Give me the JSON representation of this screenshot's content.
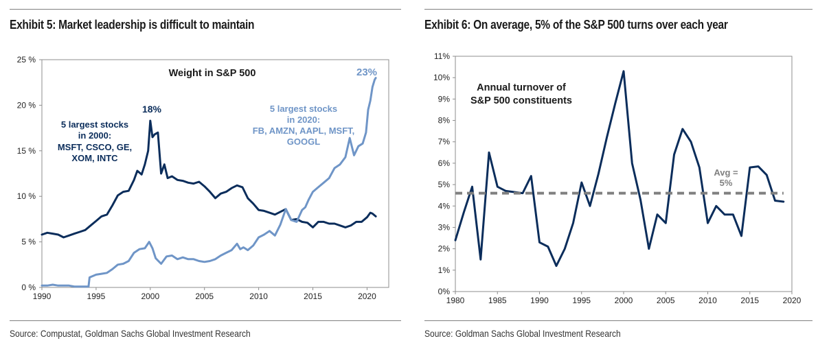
{
  "chart_data": [
    {
      "id": "exhibit5",
      "type": "line",
      "title": "Exhibit 5: Market leadership is difficult to maintain",
      "subtitle": "Weight in S&P 500",
      "xlabel": "",
      "ylabel": "",
      "xlim": [
        1990,
        2022
      ],
      "ylim": [
        0,
        25
      ],
      "x_ticks": [
        1990,
        1995,
        2000,
        2005,
        2010,
        2015,
        2020
      ],
      "x_tick_labels": [
        "1990",
        "1995",
        "2000",
        "2005",
        "2010",
        "2015",
        "2020"
      ],
      "y_ticks": [
        0,
        5,
        10,
        15,
        20,
        25
      ],
      "y_tick_labels": [
        "0 %",
        "5 %",
        "10 %",
        "15 %",
        "20 %",
        "25 %"
      ],
      "grid": false,
      "source": "Source: Compustat, Goldman Sachs Global Investment Research",
      "series": [
        {
          "name": "5 largest stocks in 2000",
          "color": "#0b2d5b",
          "x": [
            1990,
            1990.5,
            1991,
            1991.5,
            1992,
            1992.5,
            1993,
            1993.5,
            1994,
            1994.5,
            1995,
            1995.5,
            1996,
            1996.5,
            1997,
            1997.5,
            1998,
            1998.5,
            1998.8,
            1999.2,
            1999.5,
            1999.8,
            2000.0,
            2000.2,
            2000.4,
            2000.7,
            2001.0,
            2001.3,
            2001.6,
            2002.0,
            2002.5,
            2003.0,
            2003.5,
            2004.0,
            2004.5,
            2005.0,
            2005.5,
            2006.0,
            2006.5,
            2007.0,
            2007.5,
            2008.0,
            2008.5,
            2009.0,
            2009.5,
            2010.0,
            2010.5,
            2011.0,
            2011.5,
            2012.0,
            2012.5,
            2013.0,
            2013.5,
            2014.0,
            2014.5,
            2015.0,
            2015.5,
            2016.0,
            2016.5,
            2017.0,
            2017.5,
            2018.0,
            2018.5,
            2019.0,
            2019.5,
            2020.0,
            2020.3,
            2020.5,
            2020.8
          ],
          "values": [
            5.8,
            6.0,
            5.9,
            5.8,
            5.5,
            5.7,
            5.9,
            6.1,
            6.3,
            6.8,
            7.3,
            7.8,
            8.0,
            9.0,
            10.1,
            10.5,
            10.6,
            11.8,
            12.8,
            12.4,
            13.5,
            15.0,
            18.3,
            16.5,
            16.8,
            17.0,
            12.5,
            13.5,
            12.0,
            12.2,
            11.8,
            11.7,
            11.5,
            11.4,
            11.6,
            11.1,
            10.5,
            9.8,
            10.3,
            10.5,
            10.9,
            11.2,
            11.0,
            9.8,
            9.2,
            8.5,
            8.4,
            8.2,
            8.0,
            8.3,
            8.6,
            7.4,
            7.5,
            7.2,
            7.1,
            6.6,
            7.2,
            7.2,
            7.0,
            7.0,
            6.8,
            6.6,
            6.8,
            7.2,
            7.2,
            7.7,
            8.2,
            8.1,
            7.8
          ]
        },
        {
          "name": "5 largest stocks in 2020",
          "color": "#6f95c7",
          "x": [
            1990,
            1990.5,
            1991,
            1991.5,
            1992,
            1992.5,
            1993,
            1993.5,
            1994,
            1994.3,
            1994.4,
            1995.0,
            1995.5,
            1996.0,
            1996.5,
            1997.0,
            1997.5,
            1998.0,
            1998.5,
            1999.0,
            1999.5,
            1999.9,
            2000.2,
            2000.5,
            2001.0,
            2001.5,
            2002.0,
            2002.5,
            2003.0,
            2003.5,
            2004.0,
            2004.5,
            2005.0,
            2005.5,
            2006.0,
            2006.5,
            2007.0,
            2007.5,
            2008.0,
            2008.3,
            2008.6,
            2009.0,
            2009.5,
            2010.0,
            2010.5,
            2011.0,
            2011.5,
            2012.0,
            2012.5,
            2013.0,
            2013.5,
            2014.0,
            2014.3,
            2014.6,
            2015.0,
            2015.5,
            2016.0,
            2016.5,
            2017.0,
            2017.5,
            2018.0,
            2018.4,
            2018.8,
            2019.2,
            2019.6,
            2019.9,
            2020.1,
            2020.3,
            2020.5,
            2020.7,
            2020.8
          ],
          "values": [
            0.2,
            0.2,
            0.3,
            0.2,
            0.2,
            0.2,
            0.1,
            0.1,
            0.1,
            0.1,
            1.1,
            1.4,
            1.5,
            1.6,
            2.0,
            2.5,
            2.6,
            2.9,
            3.8,
            4.2,
            4.3,
            5.0,
            4.3,
            3.2,
            2.6,
            3.4,
            3.5,
            3.1,
            3.3,
            3.1,
            3.1,
            2.9,
            2.8,
            2.9,
            3.1,
            3.5,
            3.8,
            4.1,
            4.8,
            4.2,
            4.4,
            4.1,
            4.6,
            5.5,
            5.8,
            6.2,
            5.7,
            6.9,
            8.6,
            7.4,
            7.2,
            8.5,
            8.8,
            9.6,
            10.5,
            11.0,
            11.5,
            12.0,
            13.1,
            13.5,
            14.3,
            16.4,
            14.5,
            15.5,
            15.8,
            17.0,
            19.5,
            20.5,
            22.0,
            22.8,
            23.0
          ]
        }
      ],
      "annotations": [
        {
          "text": "18%",
          "series": "5 largest stocks in 2000"
        },
        {
          "text": "23%",
          "series": "5 largest stocks in 2020"
        }
      ],
      "legend_labels": {
        "s2000": [
          "5 largest stocks",
          "in 2000:",
          "MSFT, CSCO, GE,",
          "XOM, INTC"
        ],
        "s2020": [
          "5 largest stocks",
          "in 2020:",
          "FB, AMZN, AAPL, MSFT,",
          "GOOGL"
        ]
      }
    },
    {
      "id": "exhibit6",
      "type": "line",
      "title": "Exhibit 6: On average, 5% of the S&P 500 turns over each year",
      "subtitle": [
        "Annual turnover of",
        "S&P 500 constituents"
      ],
      "xlabel": "",
      "ylabel": "",
      "xlim": [
        1980,
        2020
      ],
      "ylim": [
        0,
        11
      ],
      "x_ticks": [
        1980,
        1985,
        1990,
        1995,
        2000,
        2005,
        2010,
        2015,
        2020
      ],
      "x_tick_labels": [
        "1980",
        "1985",
        "1990",
        "1995",
        "2000",
        "2005",
        "2010",
        "2015",
        "2020"
      ],
      "y_ticks": [
        0,
        1,
        2,
        3,
        4,
        5,
        6,
        7,
        8,
        9,
        10,
        11
      ],
      "y_tick_labels": [
        "0%",
        "1%",
        "2%",
        "3%",
        "4%",
        "5%",
        "6%",
        "7%",
        "8%",
        "9%",
        "10%",
        "11%"
      ],
      "grid": false,
      "source": "Source: Goldman Sachs Global Investment Research",
      "series": [
        {
          "name": "Annual turnover of S&P 500 constituents",
          "color": "#0b2d5b",
          "x": [
            1980,
            1981,
            1982,
            1983,
            1984,
            1985,
            1986,
            1987,
            1988,
            1989,
            1990,
            1991,
            1992,
            1993,
            1994,
            1995,
            1996,
            1997,
            1998,
            1999,
            2000,
            2001,
            2002,
            2003,
            2004,
            2005,
            2006,
            2007,
            2008,
            2009,
            2010,
            2011,
            2012,
            2013,
            2014,
            2015,
            2016,
            2017,
            2018,
            2019
          ],
          "values": [
            2.4,
            3.7,
            4.9,
            1.5,
            6.5,
            4.9,
            4.7,
            4.65,
            4.6,
            5.4,
            2.3,
            2.1,
            1.2,
            2.0,
            3.2,
            5.1,
            4.0,
            5.5,
            7.2,
            8.8,
            10.3,
            6.0,
            4.3,
            2.0,
            3.6,
            3.2,
            6.4,
            7.6,
            7.0,
            5.8,
            3.2,
            4.0,
            3.6,
            3.6,
            2.6,
            5.8,
            5.85,
            5.45,
            4.25,
            4.2
          ]
        },
        {
          "name": "Average",
          "color": "#808080",
          "style": "dashed",
          "x": [
            1980,
            2019
          ],
          "values": [
            4.6,
            4.6
          ]
        }
      ],
      "annotations": [
        {
          "text": [
            "Avg =",
            "5%"
          ],
          "series": "Average"
        }
      ]
    }
  ]
}
